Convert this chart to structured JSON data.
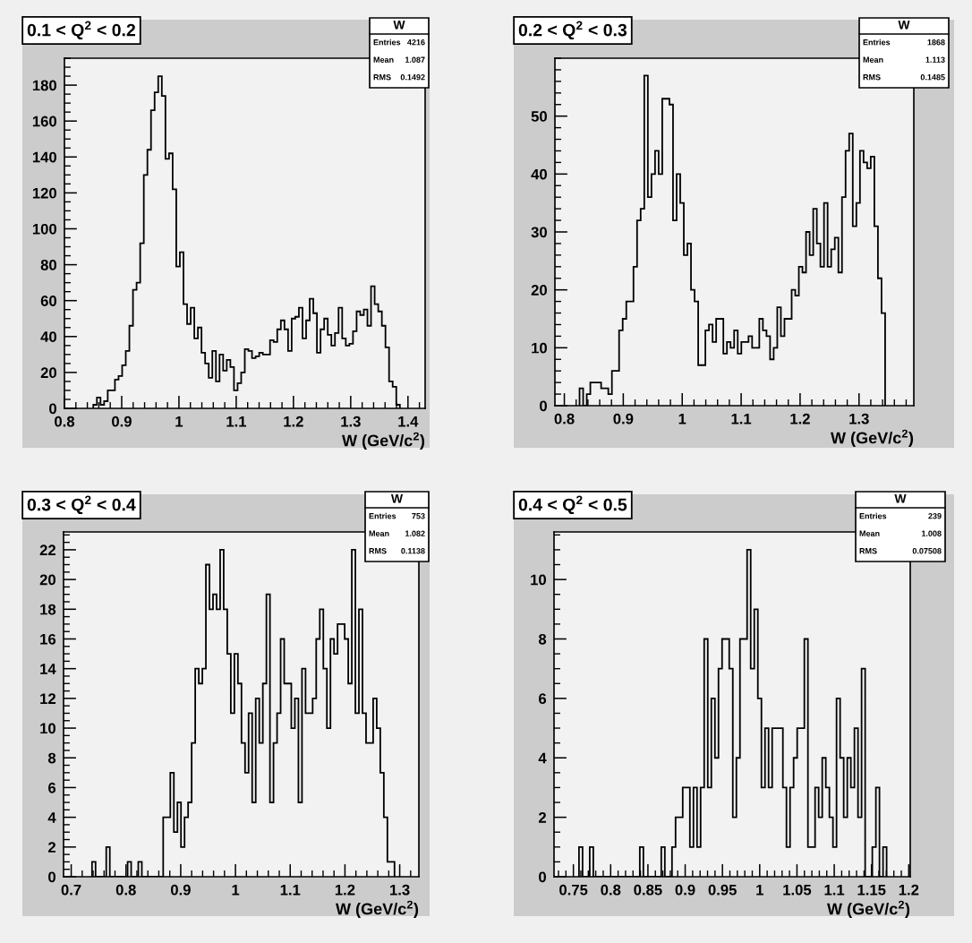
{
  "chart_data": [
    {
      "type": "histogram",
      "title": "0.1 < Q$^{2}$ < 0.2",
      "xlabel": "W (GeV/c$^{2}$)",
      "color": "#000000",
      "xlim": [
        0.8,
        1.43
      ],
      "xticks": [
        0.8,
        0.9,
        1,
        1.1,
        1.2,
        1.3,
        1.4
      ],
      "ylim": [
        0,
        195
      ],
      "yticks": [
        0,
        20,
        40,
        60,
        80,
        100,
        120,
        140,
        160,
        180
      ],
      "bins": [
        0.8504,
        0.8567,
        0.863,
        0.8693,
        0.8756,
        0.8819,
        0.8882,
        0.8945,
        0.9008,
        0.9071,
        0.9134,
        0.9197,
        0.926,
        0.9323,
        0.9386,
        0.9449,
        0.9512,
        0.9575,
        0.9638,
        0.9701,
        0.9764,
        0.9827,
        0.989,
        0.9953,
        1.0016,
        1.0079,
        1.0142,
        1.0205,
        1.0268,
        1.0331,
        1.0394,
        1.0457,
        1.052,
        1.0583,
        1.0646,
        1.0709,
        1.0772,
        1.0835,
        1.0898,
        1.0961,
        1.1024,
        1.1087,
        1.115,
        1.1213,
        1.1276,
        1.1339,
        1.1402,
        1.1465,
        1.1528,
        1.1591,
        1.1654,
        1.1717,
        1.178,
        1.1843,
        1.1906,
        1.1969,
        1.2032,
        1.2095,
        1.2158,
        1.2221,
        1.2284,
        1.2347,
        1.241,
        1.2473,
        1.2536,
        1.2599,
        1.2662,
        1.2725,
        1.2788,
        1.2851,
        1.2914,
        1.2977,
        1.304,
        1.3103,
        1.3166,
        1.3229,
        1.3292,
        1.3355,
        1.3418,
        1.3481,
        1.3544,
        1.3607,
        1.367,
        1.3733,
        1.3796,
        1.3859
      ],
      "values": [
        2,
        6,
        2,
        4,
        10,
        10,
        16,
        18,
        24,
        32,
        46,
        66,
        70,
        92,
        130,
        144,
        166,
        176,
        185,
        174,
        139,
        142,
        122,
        79,
        87,
        58,
        47,
        56,
        39,
        45,
        31,
        25,
        17,
        32,
        15,
        30,
        21,
        27,
        23,
        10,
        14,
        20,
        33,
        32,
        28,
        29,
        31,
        30,
        30,
        38,
        37,
        44,
        49,
        44,
        32,
        50,
        51,
        56,
        39,
        49,
        61,
        53,
        31,
        44,
        50,
        41,
        35,
        42,
        56,
        39,
        35,
        36,
        43,
        54,
        52,
        55,
        46,
        68,
        58,
        54,
        46,
        34,
        15,
        12,
        2
      ],
      "annotations": [
        "W",
        "Entries",
        "4216",
        "Mean",
        "1.087",
        "RMS",
        "0.1492"
      ]
    },
    {
      "type": "histogram",
      "title": "0.2 < Q$^{2}$ < 0.3",
      "xlabel": "W (GeV/c$^{2}$)",
      "color": "#000000",
      "xlim": [
        0.784,
        1.393
      ],
      "xticks": [
        0.8,
        0.9,
        1,
        1.1,
        1.2,
        1.3
      ],
      "ylim": [
        0,
        60
      ],
      "yticks": [
        0,
        10,
        20,
        30,
        40,
        50
      ],
      "bins": [
        0.8258,
        0.8319,
        0.838,
        0.8441,
        0.8502,
        0.8563,
        0.8624,
        0.8685,
        0.8746,
        0.8807,
        0.8868,
        0.8929,
        0.899,
        0.9051,
        0.9112,
        0.9173,
        0.9234,
        0.9295,
        0.9356,
        0.9417,
        0.9478,
        0.9539,
        0.96,
        0.9661,
        0.9722,
        0.9783,
        0.9844,
        0.9905,
        0.9966,
        1.0027,
        1.0088,
        1.0149,
        1.021,
        1.0271,
        1.0332,
        1.0393,
        1.0454,
        1.0515,
        1.0576,
        1.0637,
        1.0698,
        1.0759,
        1.082,
        1.0881,
        1.0942,
        1.1003,
        1.1064,
        1.1125,
        1.1186,
        1.1247,
        1.1308,
        1.1369,
        1.143,
        1.1491,
        1.1552,
        1.1613,
        1.1674,
        1.1735,
        1.1796,
        1.1857,
        1.1918,
        1.1979,
        1.204,
        1.2101,
        1.2162,
        1.2223,
        1.2284,
        1.2345,
        1.2406,
        1.2467,
        1.2528,
        1.2589,
        1.265,
        1.2711,
        1.2772,
        1.2833,
        1.2894,
        1.2955,
        1.3016,
        1.3077,
        1.3138,
        1.3199,
        1.326,
        1.3321,
        1.3382,
        1.3443
      ],
      "values": [
        3,
        0,
        2,
        4,
        4,
        4,
        3,
        3,
        2,
        6,
        6,
        13,
        15,
        18,
        18,
        24,
        32,
        34,
        57,
        36,
        40,
        44,
        40,
        53,
        53,
        52,
        32,
        40,
        35,
        26,
        28,
        20,
        18,
        7,
        7,
        13,
        14,
        11,
        15,
        15,
        9,
        11,
        10,
        13,
        9,
        11,
        11,
        12,
        10,
        10,
        15,
        13,
        12,
        8,
        10,
        17,
        12,
        15,
        15,
        20,
        19,
        24,
        23,
        30,
        26,
        34,
        28,
        24,
        35,
        24,
        27,
        29,
        23,
        36,
        44,
        47,
        31,
        35,
        44,
        42,
        41,
        43,
        31,
        22,
        16
      ],
      "annotations": [
        "W",
        "Entries",
        "1868",
        "Mean",
        "1.113",
        "RMS",
        "0.1485"
      ]
    },
    {
      "type": "histogram",
      "title": "0.3 < Q$^{2}$ < 0.4",
      "xlabel": "W (GeV/c$^{2}$)",
      "color": "#000000",
      "xlim": [
        0.686,
        1.335
      ],
      "xticks": [
        0.7,
        0.8,
        0.9,
        1,
        1.1,
        1.2,
        1.3
      ],
      "ylim": [
        0,
        23.2
      ],
      "yticks": [
        0,
        2,
        4,
        6,
        8,
        10,
        12,
        14,
        16,
        18,
        20,
        22
      ],
      "bins": [
        0.738,
        0.7445,
        0.751,
        0.7575,
        0.764,
        0.7705,
        0.777,
        0.7835,
        0.79,
        0.7965,
        0.803,
        0.8095,
        0.816,
        0.8225,
        0.829,
        0.8355,
        0.842,
        0.8485,
        0.855,
        0.8615,
        0.868,
        0.8745,
        0.881,
        0.8875,
        0.894,
        0.9005,
        0.907,
        0.9135,
        0.92,
        0.9265,
        0.933,
        0.9395,
        0.946,
        0.9525,
        0.959,
        0.9655,
        0.972,
        0.9785,
        0.985,
        0.9915,
        0.998,
        1.0045,
        1.011,
        1.0175,
        1.024,
        1.0305,
        1.037,
        1.0435,
        1.05,
        1.0565,
        1.063,
        1.0695,
        1.076,
        1.0825,
        1.089,
        1.0955,
        1.102,
        1.1085,
        1.115,
        1.1215,
        1.128,
        1.1345,
        1.141,
        1.1475,
        1.154,
        1.1605,
        1.167,
        1.1735,
        1.18,
        1.1865,
        1.193,
        1.1995,
        1.206,
        1.2125,
        1.219,
        1.2255,
        1.232,
        1.2385,
        1.245,
        1.2515,
        1.258,
        1.2645,
        1.271,
        1.2775,
        1.284,
        1.2905
      ],
      "values": [
        1,
        0,
        0,
        0,
        2,
        0,
        0,
        0,
        0,
        0,
        1,
        0,
        0,
        1,
        0,
        0,
        0,
        0,
        0,
        0,
        4,
        4,
        7,
        3,
        5,
        2,
        4,
        5,
        9,
        14,
        13,
        14,
        21,
        18,
        19,
        18,
        22,
        18,
        15,
        11,
        15,
        13,
        9,
        7,
        11,
        5,
        12,
        9,
        13,
        19,
        5,
        9,
        11,
        16,
        13,
        13,
        10,
        12,
        5,
        14,
        11,
        11,
        12,
        16,
        18,
        14,
        10,
        16,
        15,
        17,
        17,
        16,
        13,
        22,
        11,
        18,
        11,
        9,
        9,
        12,
        10,
        7,
        4,
        1,
        1
      ],
      "annotations": [
        "W",
        "Entries",
        "753",
        "Mean",
        "1.082",
        "RMS",
        "0.1138"
      ]
    },
    {
      "type": "histogram",
      "title": "0.4 < Q$^{2}$ < 0.5",
      "xlabel": "W (GeV/c$^{2}$)",
      "color": "#000000",
      "xlim": [
        0.724,
        1.202
      ],
      "xticks": [
        0.75,
        0.8,
        0.85,
        0.9,
        0.95,
        1,
        1.05,
        1.1,
        1.15,
        1.2
      ],
      "ylim": [
        0,
        11.6
      ],
      "yticks": [
        0,
        2,
        4,
        6,
        8,
        10
      ],
      "bins": [
        0.7575,
        0.7623,
        0.7671,
        0.7719,
        0.7767,
        0.7815,
        0.7863,
        0.7911,
        0.7959,
        0.8007,
        0.8055,
        0.8103,
        0.8151,
        0.8199,
        0.8247,
        0.8295,
        0.8343,
        0.8391,
        0.8439,
        0.8487,
        0.8535,
        0.8583,
        0.8631,
        0.8679,
        0.8727,
        0.8775,
        0.8823,
        0.8871,
        0.8919,
        0.8967,
        0.9015,
        0.9063,
        0.9111,
        0.9159,
        0.9207,
        0.9255,
        0.9303,
        0.9351,
        0.9399,
        0.9447,
        0.9495,
        0.9543,
        0.9591,
        0.9639,
        0.9687,
        0.9735,
        0.9783,
        0.9831,
        0.9879,
        0.9927,
        0.9975,
        1.0023,
        1.0071,
        1.0119,
        1.0167,
        1.0215,
        1.0263,
        1.0311,
        1.0359,
        1.0407,
        1.0455,
        1.0503,
        1.0551,
        1.0599,
        1.0647,
        1.0695,
        1.0743,
        1.0791,
        1.0839,
        1.0887,
        1.0935,
        1.0983,
        1.1031,
        1.1079,
        1.1127,
        1.1175,
        1.1223,
        1.1271,
        1.1319,
        1.1367,
        1.1415,
        1.1463,
        1.1511,
        1.1559,
        1.1607,
        1.1655,
        1.1703
      ],
      "values": [
        1,
        0,
        0,
        1,
        0,
        0,
        0,
        0,
        0,
        0,
        0,
        0,
        0,
        0,
        0,
        0,
        0,
        1,
        0,
        0,
        0,
        0,
        0,
        1,
        0,
        0,
        1,
        2,
        2,
        3,
        3,
        1,
        3,
        1,
        3,
        8,
        3,
        6,
        4,
        7,
        8,
        8,
        7,
        2,
        4,
        8,
        8,
        11,
        7,
        9,
        6,
        3,
        5,
        3,
        5,
        5,
        5,
        3,
        1,
        3,
        4,
        5,
        5,
        8,
        1,
        1,
        3,
        2,
        4,
        3,
        2,
        1,
        6,
        4,
        2,
        4,
        3,
        5,
        2,
        7,
        0,
        0,
        1,
        3,
        0,
        1
      ],
      "annotations": [
        "W",
        "Entries",
        "239",
        "Mean",
        "1.008",
        "RMS",
        "0.07508"
      ]
    }
  ]
}
